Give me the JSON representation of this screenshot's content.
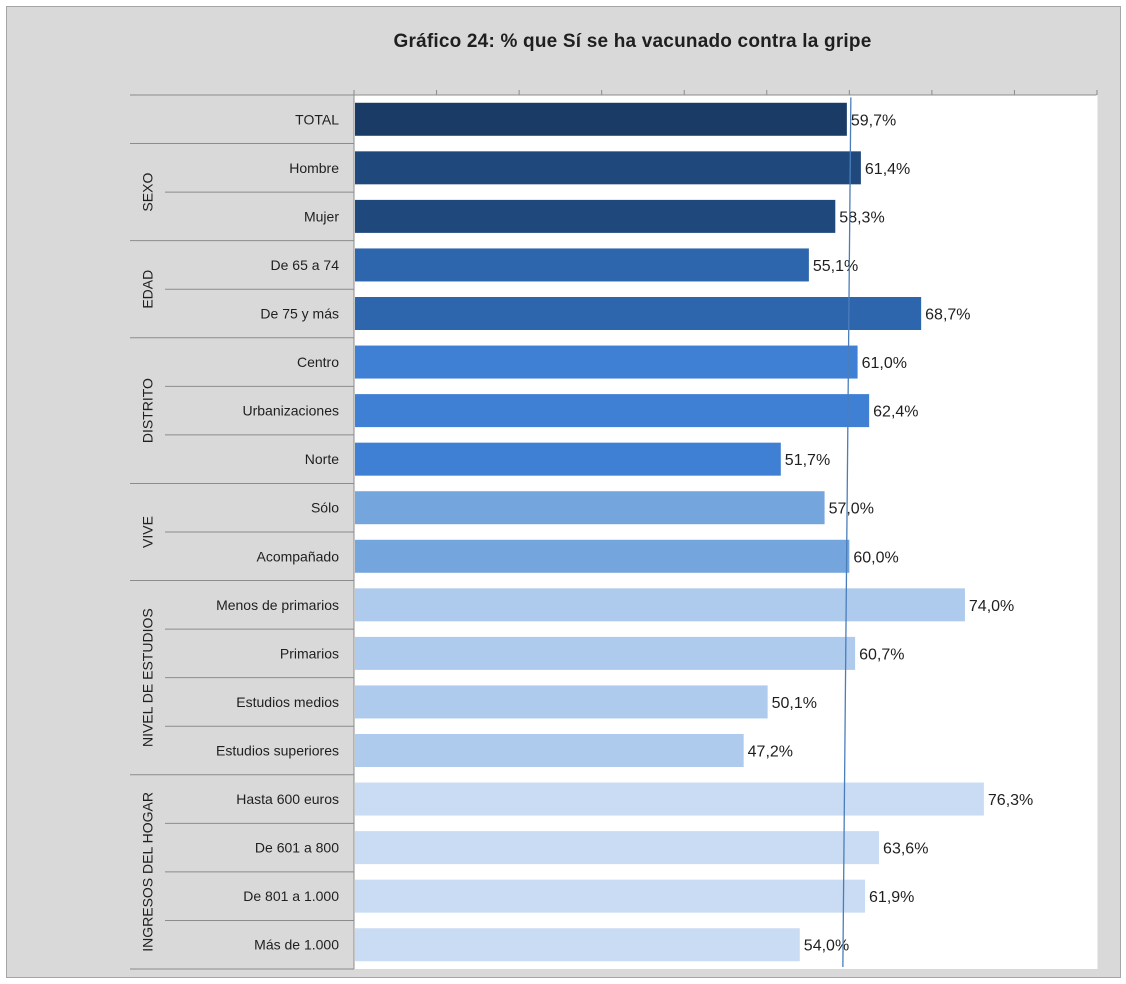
{
  "chart_data": {
    "type": "bar",
    "orientation": "horizontal",
    "title": "Gráfico 24:  % que Sí se ha vacunado contra la gripe",
    "xlim": [
      0,
      90
    ],
    "grid": false,
    "reference_line_value": 59.7,
    "groups": [
      {
        "name": "",
        "items": [
          {
            "label": "TOTAL",
            "value": 59.7,
            "display": "59,7%",
            "color": "#1a3b66"
          }
        ]
      },
      {
        "name": "SEXO",
        "items": [
          {
            "label": "Hombre",
            "value": 61.4,
            "display": "61,4%",
            "color": "#1f497d"
          },
          {
            "label": "Mujer",
            "value": 58.3,
            "display": "58,3%",
            "color": "#1f497d"
          }
        ]
      },
      {
        "name": "EDAD",
        "items": [
          {
            "label": "De 65 a 74",
            "value": 55.1,
            "display": "55,1%",
            "color": "#2e66ad"
          },
          {
            "label": "De 75 y más",
            "value": 68.7,
            "display": "68,7%",
            "color": "#2e66ad"
          }
        ]
      },
      {
        "name": "DISTRITO",
        "items": [
          {
            "label": "Centro",
            "value": 61.0,
            "display": "61,0%",
            "color": "#4080d4"
          },
          {
            "label": "Urbanizaciones",
            "value": 62.4,
            "display": "62,4%",
            "color": "#4080d4"
          },
          {
            "label": "Norte",
            "value": 51.7,
            "display": "51,7%",
            "color": "#4080d4"
          }
        ]
      },
      {
        "name": "VIVE",
        "items": [
          {
            "label": "Sólo",
            "value": 57.0,
            "display": "57,0%",
            "color": "#74a5dc"
          },
          {
            "label": "Acompañado",
            "value": 60.0,
            "display": "60,0%",
            "color": "#74a5dc"
          }
        ]
      },
      {
        "name": "NIVEL DE ESTUDIOS",
        "items": [
          {
            "label": "Menos de primarios",
            "value": 74.0,
            "display": "74,0%",
            "color": "#aecaed"
          },
          {
            "label": "Primarios",
            "value": 60.7,
            "display": "60,7%",
            "color": "#aecaed"
          },
          {
            "label": "Estudios medios",
            "value": 50.1,
            "display": "50,1%",
            "color": "#aecaed"
          },
          {
            "label": "Estudios superiores",
            "value": 47.2,
            "display": "47,2%",
            "color": "#aecaed"
          }
        ]
      },
      {
        "name": "INGRESOS DEL HOGAR",
        "items": [
          {
            "label": "Hasta 600 euros",
            "value": 76.3,
            "display": "76,3%",
            "color": "#c9dcf3"
          },
          {
            "label": "De 601 a 800",
            "value": 63.6,
            "display": "63,6%",
            "color": "#c9dcf3"
          },
          {
            "label": "De 801 a 1.000",
            "value": 61.9,
            "display": "61,9%",
            "color": "#c9dcf3"
          },
          {
            "label": "Más de 1.000",
            "value": 54.0,
            "display": "54,0%",
            "color": "#c9dcf3"
          }
        ]
      }
    ]
  }
}
